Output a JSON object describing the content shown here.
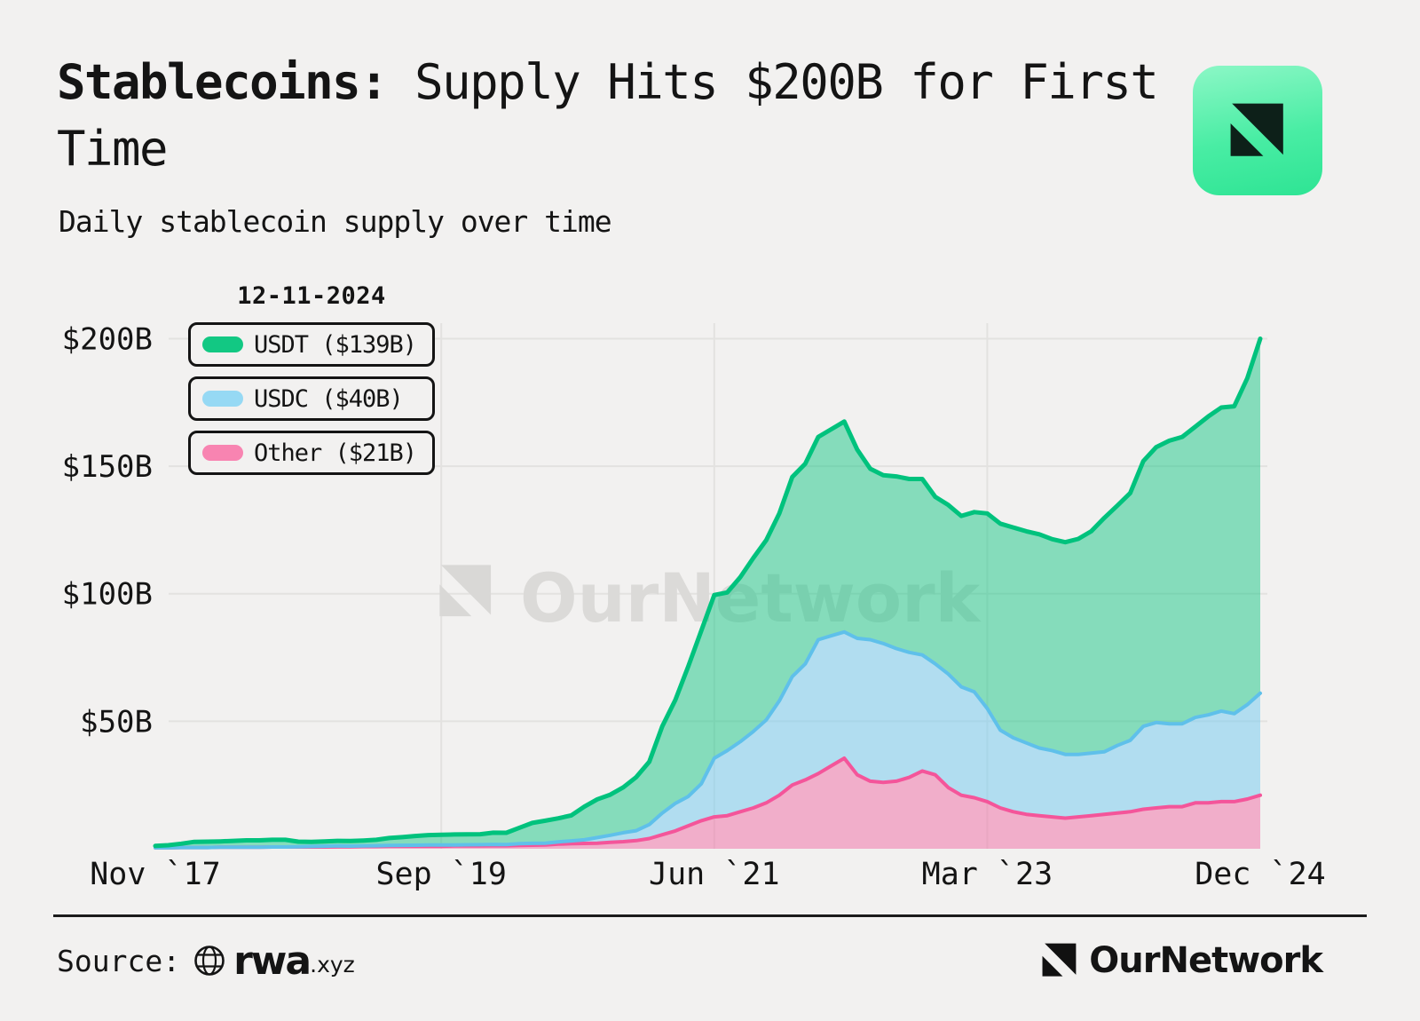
{
  "header": {
    "title_bold": "Stablecoins:",
    "title_rest": " Supply Hits $200B for First Time",
    "subtitle": "Daily stablecoin supply over time"
  },
  "watermark": {
    "text": "OurNetwork"
  },
  "legend": {
    "date": "12-11-2024",
    "items": [
      {
        "label": "USDT ($139B)",
        "color": "#12c883"
      },
      {
        "label": "USDC ($40B)",
        "color": "#96d9f4"
      },
      {
        "label": "Other ($21B)",
        "color": "#f884b1"
      }
    ]
  },
  "chart_data": {
    "type": "area",
    "stacked": true,
    "title": "Stablecoins: Supply Hits $200B for First Time",
    "subtitle": "Daily stablecoin supply over time",
    "as_of_date": "12-11-2024",
    "unit": "USD billions",
    "x_interval": "month",
    "x_start": "2017-11",
    "x_end": "2024-12",
    "x_tick_indices": [
      0,
      22,
      43,
      64,
      85
    ],
    "x_tick_labels": [
      "Nov `17",
      "Sep `19",
      "Jun `21",
      "Mar `23",
      "Dec `24"
    ],
    "y_ticks": [
      50,
      100,
      150,
      200
    ],
    "y_tick_labels": [
      "$50B",
      "$100B",
      "$150B",
      "$200B"
    ],
    "ylim": [
      0,
      204
    ],
    "grid": true,
    "legend_position": "top-left",
    "series_order": "bottom-to-top",
    "series": [
      {
        "name": "Other",
        "latest": 21,
        "fill": "#ef6ba4",
        "fill_opacity": 0.5,
        "stroke": "#f4559a",
        "stroke_width": 4,
        "values": [
          0.4,
          0.4,
          0.5,
          0.5,
          0.5,
          0.6,
          0.6,
          0.6,
          0.6,
          0.7,
          0.7,
          0.7,
          0.7,
          0.7,
          0.8,
          0.8,
          0.9,
          0.9,
          1.0,
          1.0,
          1.0,
          1.0,
          1.0,
          1.1,
          1.1,
          1.1,
          1.2,
          1.2,
          1.3,
          1.4,
          1.5,
          1.8,
          2.0,
          2.1,
          2.2,
          2.5,
          2.8,
          3.2,
          4.0,
          5.5,
          7.0,
          9.0,
          11.0,
          12.5,
          13.0,
          14.5,
          16.0,
          18.0,
          21.0,
          25.0,
          27.0,
          29.5,
          32.5,
          35.5,
          29.0,
          26.5,
          26.0,
          26.5,
          28.0,
          30.5,
          29.0,
          24.0,
          21.0,
          20.0,
          18.5,
          16.0,
          14.5,
          13.5,
          13.0,
          12.5,
          12.0,
          12.5,
          13.0,
          13.5,
          14.0,
          14.5,
          15.5,
          16.0,
          16.5,
          16.5,
          18.0,
          18.0,
          18.5,
          18.5,
          19.5,
          21.0
        ]
      },
      {
        "name": "USDC",
        "latest": 40,
        "fill": "#6fc9f0",
        "fill_opacity": 0.5,
        "stroke": "#5fc0ea",
        "stroke_width": 4,
        "values": [
          0,
          0,
          0,
          0,
          0,
          0,
          0,
          0,
          0,
          0,
          0,
          0.1,
          0.2,
          0.3,
          0.3,
          0.25,
          0.25,
          0.3,
          0.3,
          0.35,
          0.4,
          0.45,
          0.45,
          0.4,
          0.45,
          0.5,
          0.5,
          0.45,
          0.7,
          0.73,
          0.7,
          0.93,
          1.1,
          1.4,
          2.2,
          2.8,
          3.5,
          3.9,
          5.5,
          8.5,
          10.8,
          11.5,
          14.5,
          23.0,
          25.5,
          27.5,
          30.0,
          32.5,
          37.0,
          42.5,
          45.5,
          52.5,
          51.0,
          49.5,
          53.5,
          55.5,
          54.5,
          52.0,
          49.0,
          45.5,
          43.5,
          44.5,
          42.5,
          41.5,
          36.5,
          30.5,
          29.0,
          28.0,
          26.5,
          26.0,
          25.0,
          24.5,
          24.5,
          24.5,
          26.5,
          28.0,
          32.5,
          33.5,
          32.5,
          32.5,
          33.5,
          34.5,
          35.5,
          34.5,
          37.0,
          40.0
        ]
      },
      {
        "name": "USDT",
        "latest": 139,
        "fill": "#0fc481",
        "fill_opacity": 0.48,
        "stroke": "#00c27d",
        "stroke_width": 5,
        "values": [
          0.7,
          1.0,
          1.5,
          2.2,
          2.3,
          2.3,
          2.5,
          2.7,
          2.7,
          2.8,
          2.8,
          2.0,
          1.8,
          1.9,
          2.0,
          2.0,
          2.1,
          2.3,
          2.9,
          3.2,
          3.6,
          3.9,
          4.0,
          4.1,
          4.1,
          4.1,
          4.6,
          4.6,
          6.2,
          8.0,
          8.8,
          9.2,
          10.0,
          13.0,
          15.0,
          15.9,
          17.8,
          21.0,
          24.6,
          34.0,
          40.5,
          51.0,
          60.0,
          64.0,
          62.0,
          64.5,
          68.0,
          70.5,
          73.5,
          78.3,
          78.5,
          79.5,
          81.0,
          82.5,
          74.0,
          67.0,
          66.0,
          67.5,
          68.0,
          69.0,
          65.5,
          66.3,
          67.0,
          70.5,
          76.5,
          81.0,
          82.5,
          83.0,
          83.8,
          82.9,
          83.2,
          84.5,
          87.0,
          91.7,
          94.0,
          97.0,
          104.0,
          108.0,
          111.0,
          112.5,
          114.0,
          117.0,
          119.0,
          120.5,
          128.0,
          139.0
        ]
      }
    ]
  },
  "footer": {
    "source_label": "Source:",
    "source_name": "rwa",
    "source_suffix": ".xyz",
    "brand": "OurNetwork"
  }
}
